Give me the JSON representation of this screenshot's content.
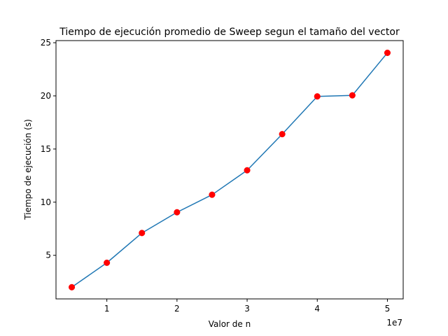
{
  "chart_data": {
    "type": "line",
    "title": "Tiempo de ejecución promedio de Sweep segun el tamaño del vector",
    "xlabel": "Valor de n",
    "ylabel": "Tiempo de ejecución (s)",
    "x_offset_label": "1e7",
    "x": [
      5000000,
      10000000,
      15000000,
      20000000,
      25000000,
      30000000,
      35000000,
      40000000,
      45000000,
      50000000
    ],
    "y": [
      2.0,
      4.3,
      7.1,
      9.05,
      10.7,
      13.0,
      16.4,
      19.95,
      20.05,
      24.05
    ],
    "xlim": [
      2750000,
      52250000
    ],
    "ylim": [
      0.9,
      25.2
    ],
    "xticks": [
      10000000,
      20000000,
      30000000,
      40000000,
      50000000
    ],
    "xtick_labels": [
      "1",
      "2",
      "3",
      "4",
      "5"
    ],
    "yticks": [
      5,
      10,
      15,
      20,
      25
    ],
    "ytick_labels": [
      "5",
      "10",
      "15",
      "20",
      "25"
    ],
    "grid": false,
    "line_color": "#1f77b4",
    "marker_color": "#ff0000"
  }
}
